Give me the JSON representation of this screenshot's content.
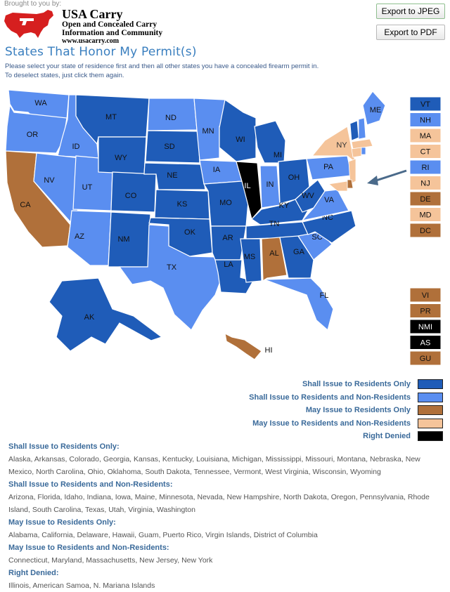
{
  "header": {
    "brought_by": "Brought to you by:",
    "brand": "USA Carry",
    "tagline_1": "Open and Concealed Carry",
    "tagline_2": "Information and Community",
    "url": "www.usacarry.com"
  },
  "buttons": {
    "export_jpeg": "Export to JPEG",
    "export_pdf": "Export to PDF"
  },
  "page_title": "States That Honor My Permit(s)",
  "instructions": [
    "Please select your state of residence first and then all other states you have a concealed firearm permit in.",
    "To deselect states, just click them again."
  ],
  "colors": {
    "shall_residents_only": "#1f5cb8",
    "shall_residents_nonresidents": "#5a8ef0",
    "may_residents_only": "#b0703a",
    "may_residents_nonresidents": "#f5c49a",
    "right_denied": "#000000",
    "map_border": "#ffffff"
  },
  "map_states": {
    "WA": "shall_residents_nonresidents",
    "OR": "shall_residents_nonresidents",
    "CA": "may_residents_only",
    "ID": "shall_residents_nonresidents",
    "NV": "shall_residents_nonresidents",
    "UT": "shall_residents_nonresidents",
    "AZ": "shall_residents_nonresidents",
    "MT": "shall_residents_only",
    "WY": "shall_residents_only",
    "CO": "shall_residents_only",
    "NM": "shall_residents_only",
    "ND": "shall_residents_nonresidents",
    "SD": "shall_residents_only",
    "NE": "shall_residents_only",
    "KS": "shall_residents_only",
    "OK": "shall_residents_only",
    "TX": "shall_residents_nonresidents",
    "MN": "shall_residents_nonresidents",
    "IA": "shall_residents_nonresidents",
    "MO": "shall_residents_only",
    "AR": "shall_residents_only",
    "LA": "shall_residents_only",
    "WI": "shall_residents_only",
    "IL": "right_denied",
    "MI": "shall_residents_only",
    "IN": "shall_residents_nonresidents",
    "OH": "shall_residents_only",
    "KY": "shall_residents_only",
    "TN": "shall_residents_only",
    "MS": "shall_residents_only",
    "AL": "may_residents_only",
    "GA": "shall_residents_only",
    "FL": "shall_residents_nonresidents",
    "SC": "shall_residents_nonresidents",
    "NC": "shall_residents_only",
    "VA": "shall_residents_nonresidents",
    "WV": "shall_residents_only",
    "PA": "shall_residents_nonresidents",
    "NY": "may_residents_nonresidents",
    "ME": "shall_residents_nonresidents",
    "AK": "shall_residents_only",
    "HI": "may_residents_only"
  },
  "small_states": [
    {
      "code": "VT",
      "cat": "shall_residents_only"
    },
    {
      "code": "NH",
      "cat": "shall_residents_nonresidents"
    },
    {
      "code": "MA",
      "cat": "may_residents_nonresidents"
    },
    {
      "code": "CT",
      "cat": "may_residents_nonresidents"
    },
    {
      "code": "RI",
      "cat": "shall_residents_nonresidents"
    },
    {
      "code": "NJ",
      "cat": "may_residents_nonresidents"
    },
    {
      "code": "DE",
      "cat": "may_residents_only"
    },
    {
      "code": "MD",
      "cat": "may_residents_nonresidents"
    },
    {
      "code": "DC",
      "cat": "may_residents_only"
    }
  ],
  "territories": [
    {
      "code": "VI",
      "cat": "may_residents_only"
    },
    {
      "code": "PR",
      "cat": "may_residents_only"
    },
    {
      "code": "NMI",
      "cat": "right_denied"
    },
    {
      "code": "AS",
      "cat": "right_denied"
    },
    {
      "code": "GU",
      "cat": "may_residents_only"
    }
  ],
  "legend": [
    {
      "label": "Shall Issue to Residents Only",
      "cat": "shall_residents_only"
    },
    {
      "label": "Shall Issue to Residents and Non-Residents",
      "cat": "shall_residents_nonresidents"
    },
    {
      "label": "May Issue to Residents Only",
      "cat": "may_residents_only"
    },
    {
      "label": "May Issue to Residents and Non-Residents",
      "cat": "may_residents_nonresidents"
    },
    {
      "label": "Right Denied",
      "cat": "right_denied"
    }
  ],
  "lists": [
    {
      "heading": "Shall Issue to Residents Only:",
      "items": "Alaska, Arkansas, Colorado, Georgia, Kansas, Kentucky, Louisiana, Michigan, Mississippi, Missouri, Montana, Nebraska, New Mexico, North Carolina, Ohio, Oklahoma, South Dakota, Tennessee, Vermont, West Virginia, Wisconsin, Wyoming"
    },
    {
      "heading": "Shall Issue to Residents and Non-Residents:",
      "items": "Arizona, Florida, Idaho, Indiana, Iowa, Maine, Minnesota, Nevada, New Hampshire, North Dakota, Oregon, Pennsylvania, Rhode Island, South Carolina, Texas, Utah, Virginia, Washington"
    },
    {
      "heading": "May Issue to Residents Only:",
      "items": "Alabama, California, Delaware, Hawaii, Guam, Puerto Rico, Virgin Islands, District of Columbia"
    },
    {
      "heading": "May Issue to Residents and Non-Residents:",
      "items": "Connecticut, Maryland, Massachusetts, New Jersey, New York"
    },
    {
      "heading": "Right Denied:",
      "items": "Illinois, American Samoa, N. Mariana Islands"
    }
  ]
}
